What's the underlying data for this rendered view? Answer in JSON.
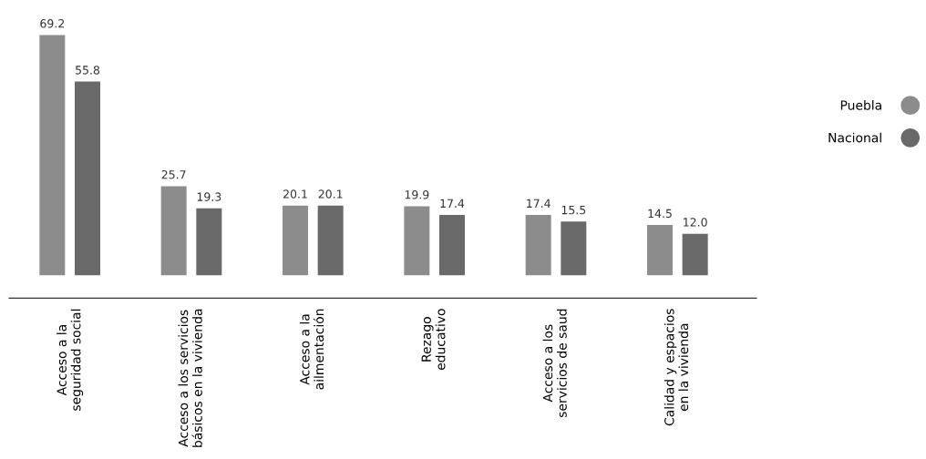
{
  "chart_data": {
    "type": "bar",
    "categories": [
      "Acceso a la\nseguridad social",
      "Acceso a los servicios\nbásicos en la vivienda",
      "Acceso a la\nailmentación",
      "Rezago\neducativo",
      "Acceso a los\nservicios de saud",
      "Calidad y espacios\nen la vivienda"
    ],
    "series": [
      {
        "name": "Puebla",
        "color": "#8c8c8c",
        "values": [
          69.2,
          25.7,
          20.1,
          19.9,
          17.4,
          14.5
        ],
        "value_labels": [
          "69.2",
          "25.7",
          "20.1",
          "19.9",
          "17.4",
          "14.5"
        ]
      },
      {
        "name": "Nacional",
        "color": "#696969",
        "values": [
          55.8,
          19.3,
          20.1,
          17.4,
          15.5,
          12.0
        ],
        "value_labels": [
          "55.8",
          "19.3",
          "20.1",
          "17.4",
          "15.5",
          "12.0"
        ]
      }
    ],
    "legend": "right",
    "grid": false
  }
}
